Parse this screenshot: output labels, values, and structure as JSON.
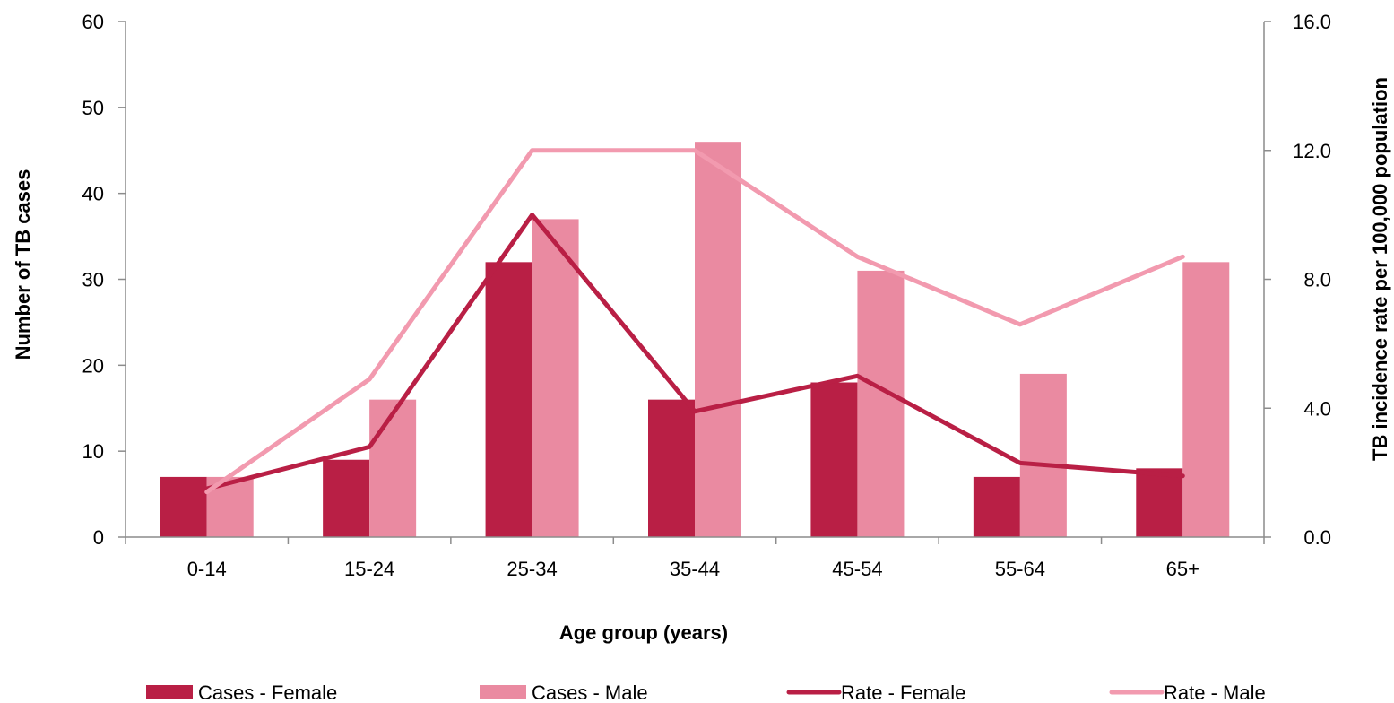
{
  "chart_data": {
    "type": "bar",
    "categories": [
      "0-14",
      "15-24",
      "25-34",
      "35-44",
      "45-54",
      "55-64",
      "65+"
    ],
    "bar_series": [
      {
        "name": "Cases - Female",
        "values": [
          7,
          9,
          32,
          16,
          18,
          7,
          8
        ],
        "color": "#B91F45"
      },
      {
        "name": "Cases - Male",
        "values": [
          7,
          16,
          37,
          46,
          31,
          19,
          32
        ],
        "color": "#EA8AA1"
      }
    ],
    "line_series": [
      {
        "name": "Rate - Female",
        "values": [
          1.5,
          2.8,
          10.0,
          3.9,
          5.0,
          2.3,
          1.9
        ],
        "color": "#B91F45",
        "axis": "right"
      },
      {
        "name": "Rate - Male",
        "values": [
          1.4,
          4.9,
          12.0,
          12.0,
          8.7,
          6.6,
          8.7
        ],
        "color": "#F29AAF",
        "axis": "right"
      }
    ],
    "xlabel": "Age group (years)",
    "ylabel": "Number of TB cases",
    "y2label": "TB incidence rate per 100,000 population",
    "ylim": [
      0,
      60
    ],
    "y2lim": [
      0,
      16
    ],
    "yticks": [
      "0",
      "10",
      "20",
      "30",
      "40",
      "50",
      "60"
    ],
    "y2ticks": [
      "0.0",
      "4.0",
      "8.0",
      "12.0",
      "16.0"
    ],
    "grid": false,
    "legend_position": "bottom"
  }
}
